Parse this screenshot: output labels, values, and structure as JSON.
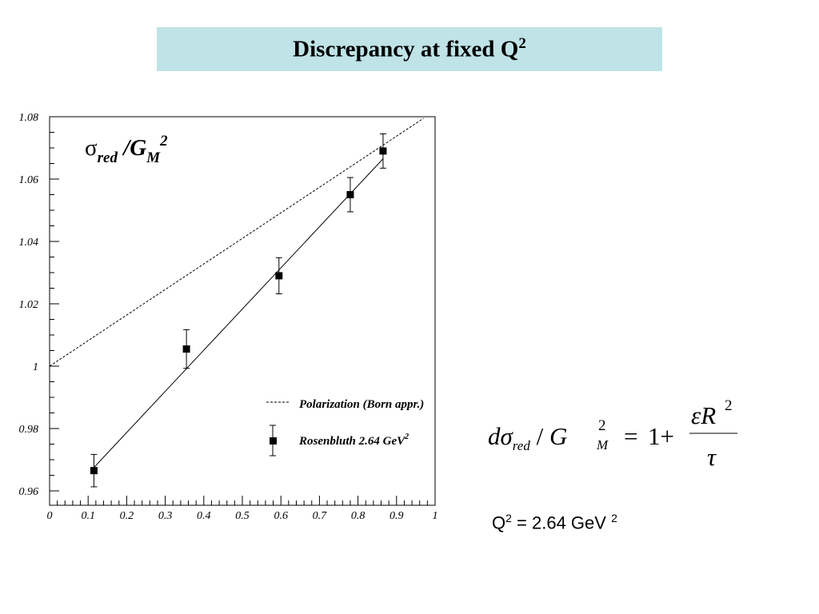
{
  "title": {
    "text": "Discrepancy at fixed Q",
    "sup": "2"
  },
  "chart_data": {
    "type": "scatter",
    "title": "",
    "xlabel": "",
    "ylabel": "",
    "xlim": [
      0,
      1
    ],
    "ylim": [
      0.955,
      1.08
    ],
    "x_ticks": [
      0,
      0.1,
      0.2,
      0.3,
      0.4,
      0.5,
      0.6,
      0.7,
      0.8,
      0.9,
      1
    ],
    "x_tick_labels": [
      "0",
      "0.1",
      "0.2",
      "0.3",
      "0.4",
      "0.5",
      "0.6",
      "0.7",
      "0.8",
      "0.9",
      "1"
    ],
    "y_ticks": [
      0.96,
      0.98,
      1.0,
      1.02,
      1.04,
      1.06,
      1.08
    ],
    "y_tick_labels": [
      "0.96",
      "0.98",
      "1",
      "1.02",
      "1.04",
      "1.06",
      "1.08"
    ],
    "grid": false,
    "legend_position": "bottom-right",
    "annotation": {
      "base": "σ",
      "sub": "red",
      "mid": " /G",
      "sub2": "M",
      "sup": "2"
    },
    "series": [
      {
        "name": "Polarization (Born appr.)",
        "style": "dashed-line",
        "x": [
          0,
          0.97
        ],
        "y": [
          1.0,
          1.0795
        ]
      },
      {
        "name": "Rosenbluth 2.64 GeV",
        "name_sup": "2",
        "style": "points-with-errors",
        "x": [
          0.115,
          0.355,
          0.595,
          0.78,
          0.865
        ],
        "y": [
          0.9665,
          1.0055,
          1.029,
          1.055,
          1.069
        ],
        "yerr": [
          0.0052,
          0.0062,
          0.0058,
          0.0055,
          0.0055
        ]
      },
      {
        "name": "",
        "style": "fit-line",
        "x": [
          0.115,
          0.865
        ],
        "y": [
          0.9675,
          1.0665
        ]
      }
    ]
  },
  "formula": {
    "lhs_d": "dσ",
    "lhs_sub": "red",
    "slash": " / ",
    "g": "G",
    "g_sup": "2",
    "g_sub": "M",
    "equals": "=",
    "one_plus": "1+",
    "numerator": "εR",
    "numerator_sup": "2",
    "denominator": "τ"
  },
  "q2_label": {
    "q": "Q",
    "q_sup": "2",
    "rest": " = 2.64 GeV ",
    "unit_sup": "2"
  }
}
